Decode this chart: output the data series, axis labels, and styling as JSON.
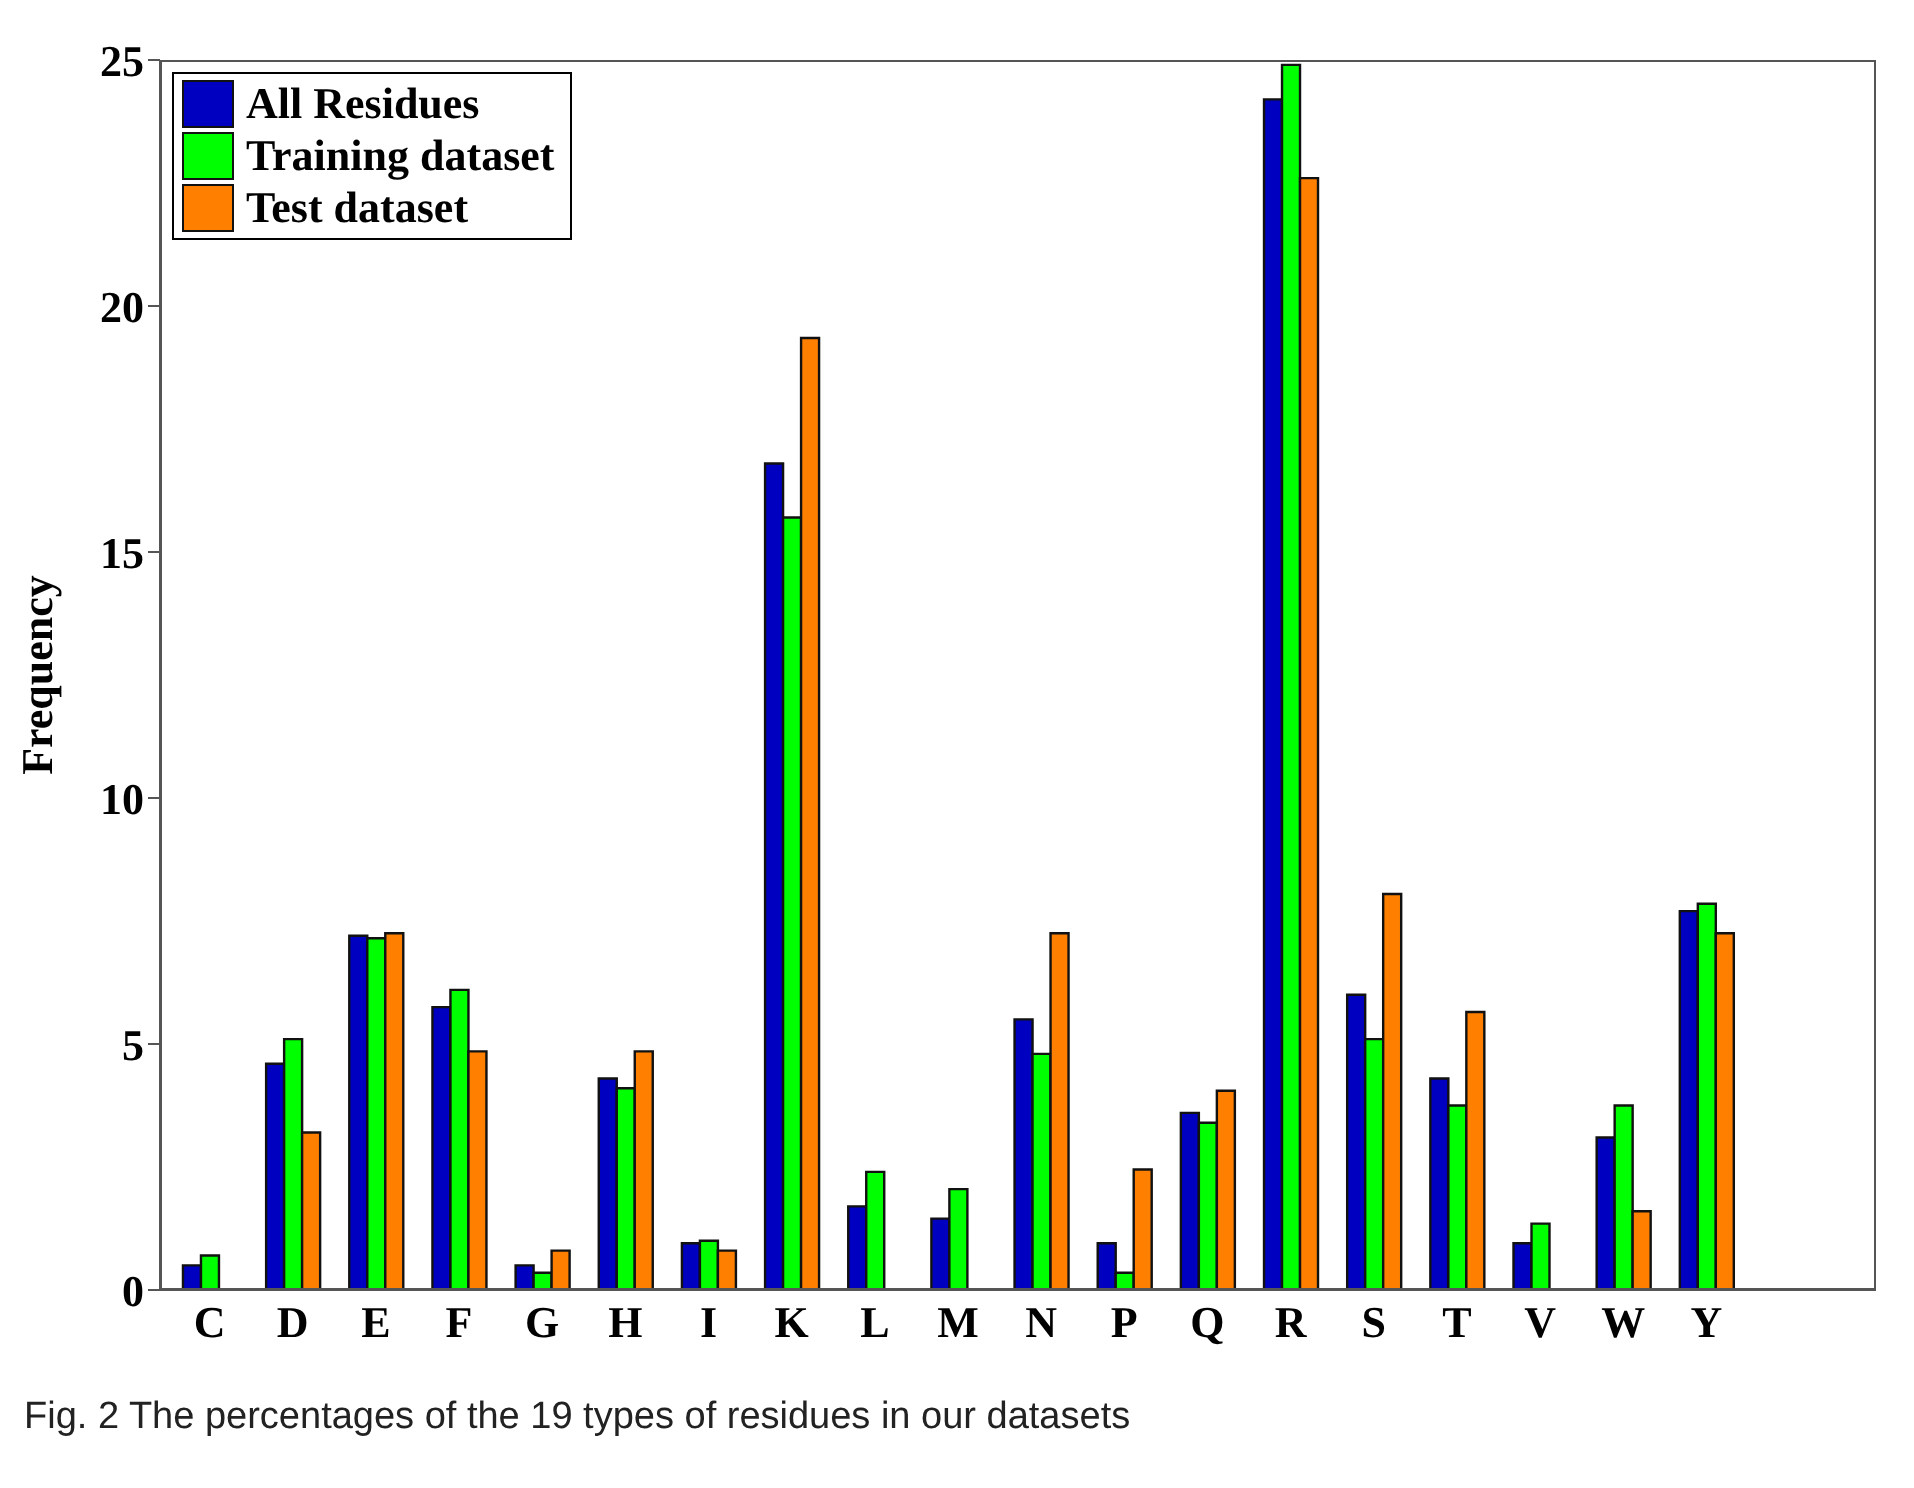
{
  "chart_data": {
    "type": "bar",
    "ylabel": "Frequency",
    "categories": [
      "C",
      "D",
      "E",
      "F",
      "G",
      "H",
      "I",
      "K",
      "L",
      "M",
      "N",
      "P",
      "Q",
      "R",
      "S",
      "T",
      "V",
      "W",
      "Y"
    ],
    "series": [
      {
        "name": "All Residues",
        "color": "#0000c0",
        "values": [
          0.5,
          4.6,
          7.2,
          5.75,
          0.5,
          4.3,
          0.95,
          16.8,
          1.7,
          1.45,
          5.5,
          0.95,
          3.6,
          24.2,
          6.0,
          4.3,
          0.95,
          3.1,
          7.7
        ]
      },
      {
        "name": "Training dataset",
        "color": "#00ff00",
        "values": [
          0.7,
          5.1,
          7.15,
          6.1,
          0.35,
          4.1,
          1.0,
          15.7,
          2.4,
          2.05,
          4.8,
          0.35,
          3.4,
          24.9,
          5.1,
          3.75,
          1.35,
          3.75,
          7.85
        ]
      },
      {
        "name": "Test dataset",
        "color": "#ff8000",
        "values": [
          0,
          3.2,
          7.25,
          4.85,
          0.8,
          4.85,
          0.8,
          19.35,
          0,
          0,
          7.25,
          2.45,
          4.05,
          22.6,
          8.05,
          5.65,
          0,
          1.6,
          7.25
        ]
      }
    ],
    "ylim": [
      0,
      25
    ],
    "yticks": [
      0,
      5,
      10,
      15,
      20,
      25
    ],
    "grid": false,
    "legend": "top left",
    "annotations": [
      "Fig. 2 The percentages of the 19 types of residues in our datasets"
    ]
  }
}
